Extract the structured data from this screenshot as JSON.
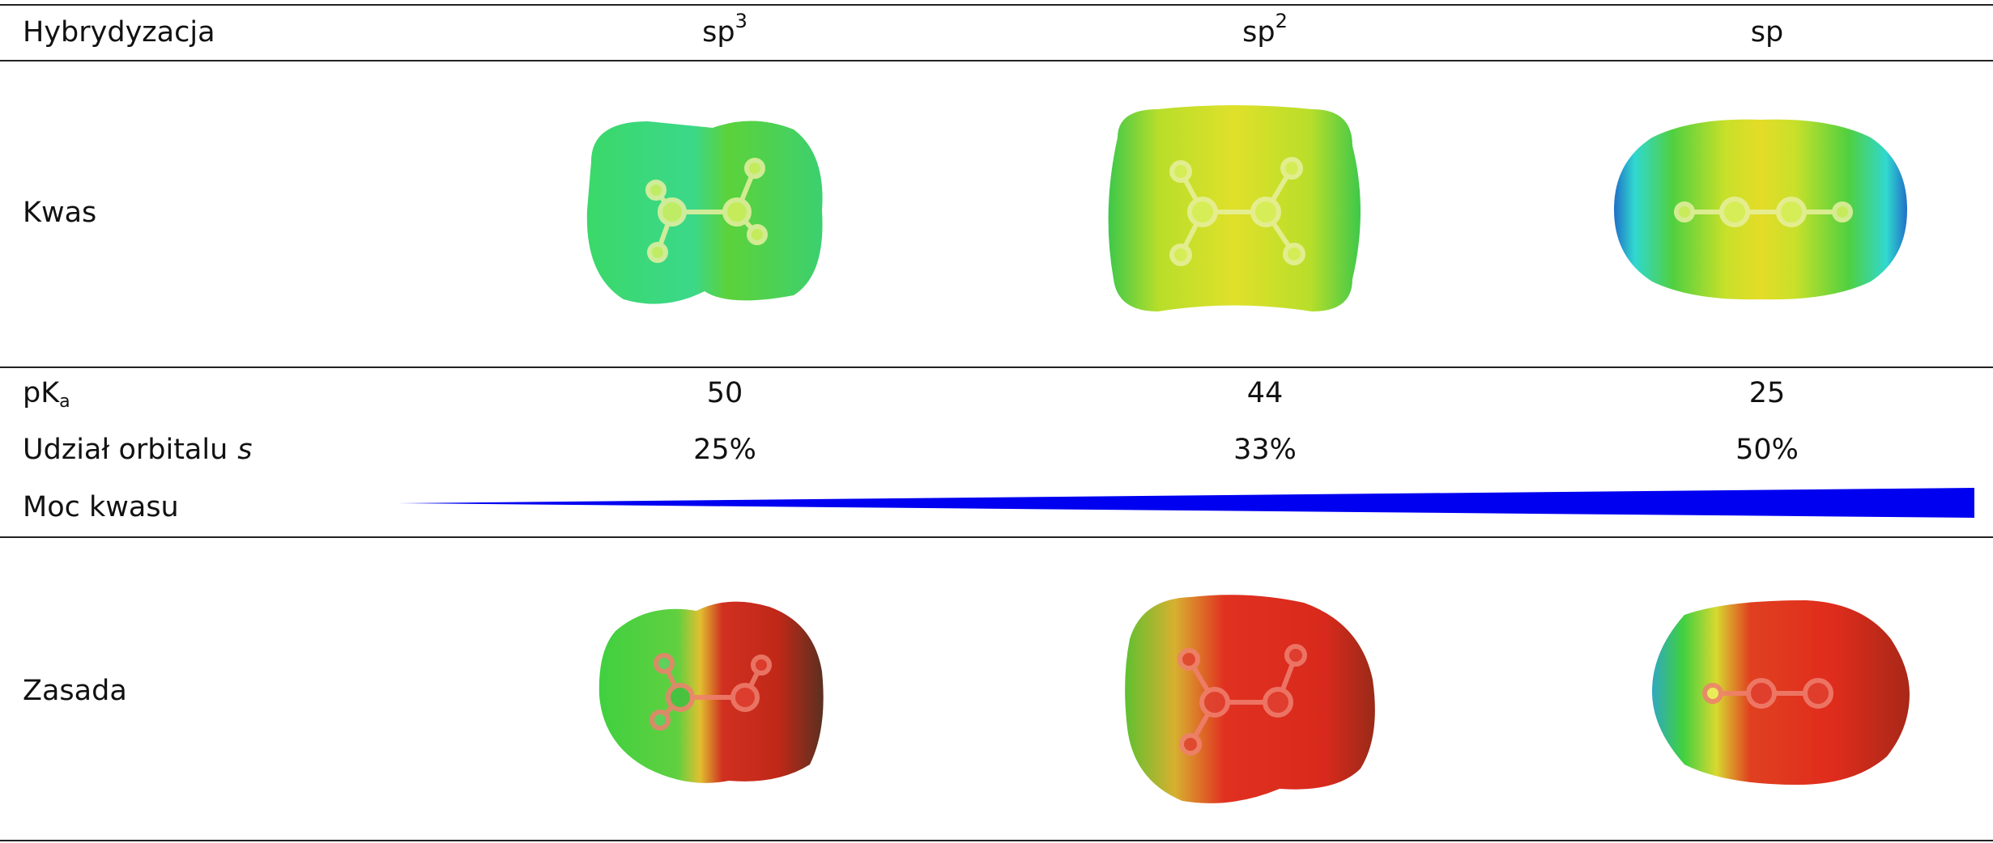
{
  "table": {
    "header": {
      "label": "Hybrydyzacja",
      "columns": [
        {
          "base": "sp",
          "sup": "3"
        },
        {
          "base": "sp",
          "sup": "2"
        },
        {
          "base": "sp"
        }
      ]
    },
    "rows": {
      "acid": {
        "label": "Kwas"
      },
      "pka": {
        "label": {
          "base": "pK",
          "sub": "a"
        },
        "values": [
          50,
          44,
          25
        ]
      },
      "s_share": {
        "label": {
          "text": "Udział orbitalu",
          "italic": "s"
        },
        "values": [
          "25%",
          "33%",
          "50%"
        ]
      },
      "acid_strength": {
        "label": "Moc kwasu"
      },
      "base": {
        "label": "Zasada"
      }
    }
  }
}
